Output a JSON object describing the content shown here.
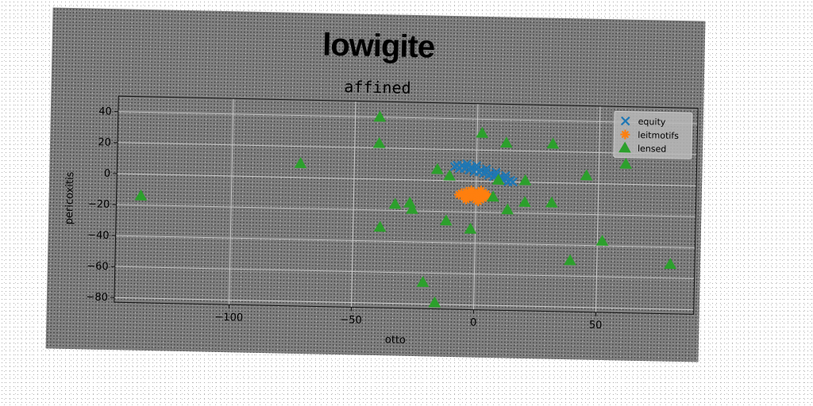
{
  "chart_data": {
    "type": "scatter",
    "title": "lowigite",
    "subtitle": "affined",
    "xlabel": "otto",
    "ylabel": "pericoxitis",
    "xlim": [
      -147,
      90
    ],
    "ylim": [
      -83,
      50
    ],
    "xticks": [
      -100,
      -50,
      0,
      50
    ],
    "yticks": [
      40,
      20,
      0,
      -20,
      -40,
      -60,
      -80
    ],
    "grid": true,
    "legend_position": "top-right",
    "series": [
      {
        "name": "equity",
        "marker": "x",
        "color": "#1f77b4",
        "points": [
          [
            -8,
            10
          ],
          [
            -6,
            10
          ],
          [
            -4,
            9
          ],
          [
            -2,
            9
          ],
          [
            0,
            8
          ],
          [
            2,
            7
          ],
          [
            4,
            6
          ],
          [
            6,
            5
          ],
          [
            8,
            4
          ],
          [
            10,
            3
          ],
          [
            12,
            2
          ],
          [
            14,
            1
          ],
          [
            -7,
            8
          ],
          [
            -5,
            8
          ],
          [
            -3,
            7
          ],
          [
            -1,
            6
          ],
          [
            1,
            6
          ],
          [
            3,
            5
          ],
          [
            5,
            4
          ],
          [
            7,
            3
          ],
          [
            9,
            2
          ],
          [
            11,
            1
          ],
          [
            13,
            0
          ],
          [
            -9,
            9
          ],
          [
            -4,
            11
          ],
          [
            0,
            10
          ],
          [
            4,
            8
          ],
          [
            8,
            6
          ],
          [
            12,
            4
          ],
          [
            15,
            0
          ]
        ]
      },
      {
        "name": "leitmotifs",
        "marker": "star",
        "color": "#ff7f0e",
        "points": [
          [
            -6,
            -8
          ],
          [
            -5,
            -10
          ],
          [
            -4,
            -7
          ],
          [
            -3,
            -11
          ],
          [
            -2,
            -9
          ],
          [
            -1,
            -8
          ],
          [
            0,
            -10
          ],
          [
            1,
            -7
          ],
          [
            2,
            -9
          ],
          [
            3,
            -11
          ],
          [
            4,
            -8
          ],
          [
            -4,
            -12
          ],
          [
            -2,
            -6
          ],
          [
            0,
            -12
          ],
          [
            2,
            -6
          ],
          [
            -7,
            -9
          ],
          [
            5,
            -10
          ],
          [
            1,
            -13
          ]
        ]
      },
      {
        "name": "lensed",
        "marker": "triangle",
        "color": "#2ca02c",
        "points": [
          [
            -137,
            -14
          ],
          [
            -72,
            9
          ],
          [
            -40,
            40
          ],
          [
            -40,
            23
          ],
          [
            -33,
            -16
          ],
          [
            -27,
            -15
          ],
          [
            -26,
            -19
          ],
          [
            -16,
            7
          ],
          [
            -11,
            3
          ],
          [
            -12,
            -26
          ],
          [
            2,
            31
          ],
          [
            -2,
            -31
          ],
          [
            -39,
            -31
          ],
          [
            12,
            25
          ],
          [
            7,
            -10
          ],
          [
            9,
            1
          ],
          [
            13,
            -18
          ],
          [
            20,
            1
          ],
          [
            20,
            -13
          ],
          [
            31,
            25
          ],
          [
            31,
            -13
          ],
          [
            45,
            5
          ],
          [
            61,
            13
          ],
          [
            39,
            -50
          ],
          [
            52,
            -37
          ],
          [
            80,
            -51
          ],
          [
            -21,
            -66
          ],
          [
            -16,
            -79
          ]
        ]
      }
    ]
  }
}
